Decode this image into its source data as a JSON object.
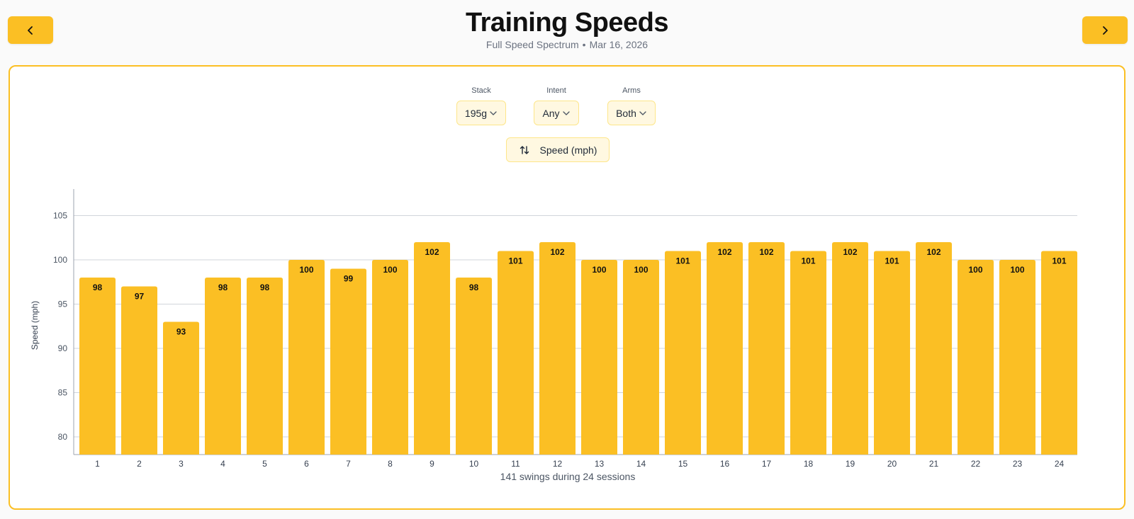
{
  "header": {
    "title": "Training Speeds",
    "subtitle_left": "Full Speed Spectrum",
    "subtitle_sep": "•",
    "subtitle_date": "Mar 16, 2026",
    "prev_icon": "chevron-left-icon",
    "next_icon": "chevron-right-icon"
  },
  "filters": {
    "stack": {
      "label": "Stack",
      "value": "195g"
    },
    "intent": {
      "label": "Intent",
      "value": "Any"
    },
    "arms": {
      "label": "Arms",
      "value": "Both"
    }
  },
  "metric_toggle": {
    "label": "Speed (mph)",
    "icon": "sort-arrows-icon"
  },
  "colors": {
    "accent": "#fbbf24",
    "bar": "#fbbf24",
    "grid": "#d1d5db"
  },
  "chart_data": {
    "type": "bar",
    "categories": [
      "1",
      "2",
      "3",
      "4",
      "5",
      "6",
      "7",
      "8",
      "9",
      "10",
      "11",
      "12",
      "13",
      "14",
      "15",
      "16",
      "17",
      "18",
      "19",
      "20",
      "21",
      "22",
      "23",
      "24"
    ],
    "values": [
      98,
      97,
      93,
      98,
      98,
      100,
      99,
      100,
      102,
      98,
      101,
      102,
      100,
      100,
      101,
      102,
      102,
      101,
      102,
      101,
      102,
      100,
      100,
      101
    ],
    "ylabel": "Speed (mph)",
    "xlabel": "141 swings during 24 sessions",
    "ylim": [
      78,
      108
    ],
    "yticks": [
      80,
      85,
      90,
      95,
      100,
      105
    ],
    "grid": true,
    "data_labels": true
  }
}
